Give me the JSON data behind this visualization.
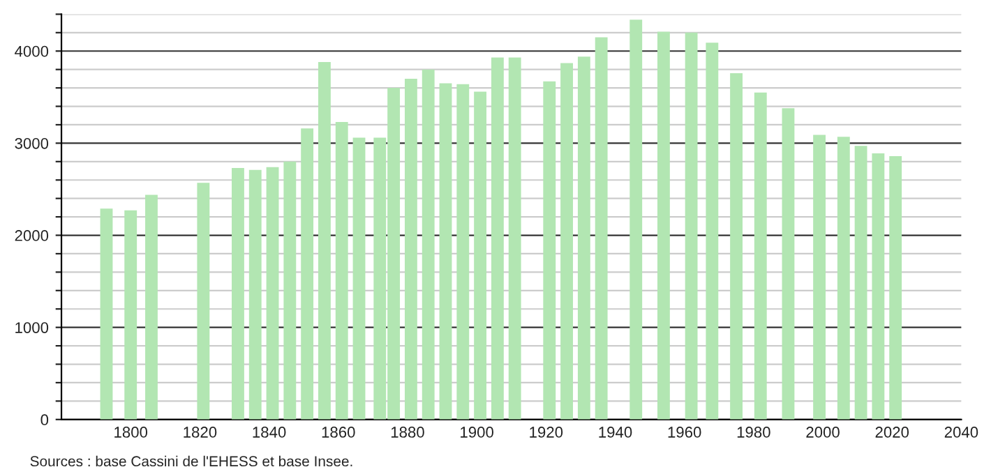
{
  "chart_data": {
    "type": "bar",
    "x": [
      1793,
      1800,
      1806,
      1821,
      1831,
      1836,
      1841,
      1846,
      1851,
      1856,
      1861,
      1866,
      1872,
      1876,
      1881,
      1886,
      1891,
      1896,
      1901,
      1906,
      1911,
      1921,
      1926,
      1931,
      1936,
      1946,
      1954,
      1962,
      1968,
      1975,
      1982,
      1990,
      1999,
      2006,
      2011,
      2016,
      2021
    ],
    "values": [
      2290,
      2270,
      2440,
      2570,
      2730,
      2710,
      2740,
      2800,
      3160,
      3880,
      3230,
      3060,
      3060,
      3600,
      3700,
      3800,
      3650,
      3640,
      3560,
      3930,
      3930,
      3670,
      3870,
      3940,
      4150,
      4340,
      4210,
      4200,
      4090,
      3760,
      3550,
      3380,
      3090,
      3070,
      2970,
      2890,
      2860
    ],
    "color": "#b2e6b2",
    "xlim": [
      1780,
      2040
    ],
    "xticks": [
      1800,
      1820,
      1840,
      1860,
      1880,
      1900,
      1920,
      1940,
      1960,
      1980,
      2000,
      2020,
      2040
    ],
    "ylim": [
      0,
      4400
    ],
    "yticks": [
      0,
      {
        "value": 200,
        "label": null
      },
      {
        "value": 400,
        "label": null
      },
      {
        "value": 600,
        "label": null
      },
      {
        "value": 800,
        "label": null
      },
      1000,
      {
        "value": 1200,
        "label": null
      },
      {
        "value": 1400,
        "label": null
      },
      {
        "value": 1600,
        "label": null
      },
      {
        "value": 1800,
        "label": null
      },
      2000,
      {
        "value": 2200,
        "label": null
      },
      {
        "value": 2400,
        "label": null
      },
      {
        "value": 2600,
        "label": null
      },
      {
        "value": 2800,
        "label": null
      },
      3000,
      {
        "value": 3200,
        "label": null
      },
      {
        "value": 3400,
        "label": null
      },
      {
        "value": 3600,
        "label": null
      },
      {
        "value": 3800,
        "label": null
      },
      4000,
      {
        "value": 4200,
        "label": null
      },
      {
        "value": 4400,
        "label": null
      }
    ],
    "grid": "y",
    "annotations": [
      "Sources : base Cassini de l'EHESS et base Insee."
    ]
  }
}
